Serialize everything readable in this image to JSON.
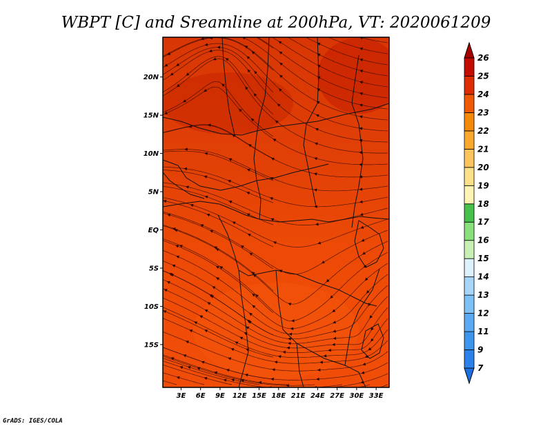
{
  "chart_data": {
    "type": "heatmap",
    "title": "WBPT [C] and Sreamline at 200hPa, VT: 2020061209",
    "field": "WBPT",
    "units": "C",
    "level": "200hPa",
    "valid_time": "2020061209",
    "overlay": "streamlines",
    "x_range_deg": [
      0.2,
      35.0
    ],
    "y_range_deg": [
      -20.6,
      25.2
    ],
    "x_ticks": [
      {
        "value": 3,
        "label": "3E"
      },
      {
        "value": 6,
        "label": "6E"
      },
      {
        "value": 9,
        "label": "9E"
      },
      {
        "value": 12,
        "label": "12E"
      },
      {
        "value": 15,
        "label": "15E"
      },
      {
        "value": 18,
        "label": "18E"
      },
      {
        "value": 21,
        "label": "21E"
      },
      {
        "value": 24,
        "label": "24E"
      },
      {
        "value": 27,
        "label": "27E"
      },
      {
        "value": 30,
        "label": "30E"
      },
      {
        "value": 33,
        "label": "33E"
      }
    ],
    "y_ticks": [
      {
        "value": 20,
        "label": "20N"
      },
      {
        "value": 15,
        "label": "15N"
      },
      {
        "value": 10,
        "label": "10N"
      },
      {
        "value": 5,
        "label": "5N"
      },
      {
        "value": 0,
        "label": "EQ"
      },
      {
        "value": -5,
        "label": "5S"
      },
      {
        "value": -10,
        "label": "10S"
      },
      {
        "value": -15,
        "label": "15S"
      }
    ],
    "colorbar": {
      "levels": [
        7,
        9,
        11,
        12,
        13,
        14,
        15,
        16,
        17,
        18,
        19,
        20,
        21,
        22,
        23,
        24,
        25,
        26
      ],
      "colors": [
        "#1c6fde",
        "#2c82e8",
        "#3d95ee",
        "#5aa9f3",
        "#7fc0f7",
        "#a7d6fa",
        "#dcf1fb",
        "#c8f0b4",
        "#8ae07c",
        "#48c04c",
        "#fdf4b4",
        "#fde08a",
        "#fdc45e",
        "#fba830",
        "#f58a0a",
        "#f05a06",
        "#e02c04",
        "#c40c00",
        "#a60000"
      ]
    },
    "dominant_range": [
      23,
      25
    ]
  },
  "credit": "GrADS: IGES/COLA"
}
